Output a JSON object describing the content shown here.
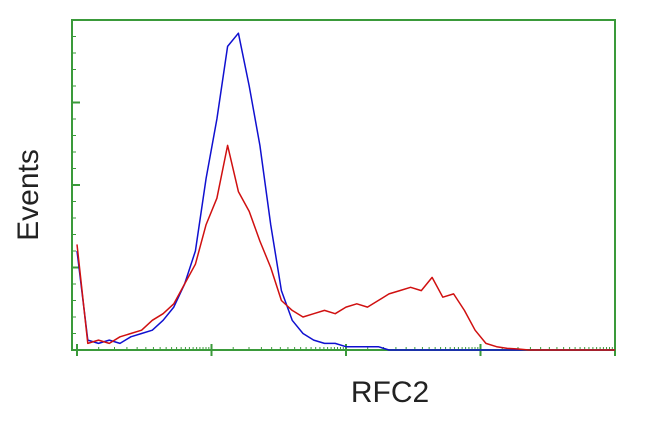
{
  "chart_data": {
    "type": "line",
    "xlabel": "RFC2",
    "ylabel": "Events",
    "x": [
      0,
      0.08,
      0.16,
      0.24,
      0.32,
      0.4,
      0.48,
      0.56,
      0.64,
      0.72,
      0.8,
      0.88,
      0.96,
      1.04,
      1.12,
      1.2,
      1.28,
      1.36,
      1.44,
      1.52,
      1.6,
      1.68,
      1.76,
      1.84,
      1.92,
      2,
      2.08,
      2.16,
      2.24,
      2.32,
      2.4,
      2.48,
      2.56,
      2.64,
      2.72,
      2.8,
      2.88,
      2.96,
      3.04,
      3.12,
      3.2,
      3.28,
      3.36,
      3.44,
      3.52,
      3.6,
      3.68,
      3.76,
      3.84,
      3.92,
      4
    ],
    "series": [
      {
        "color": "#1010d0",
        "values": [
          30,
          3,
          2,
          3,
          2,
          4,
          5,
          6,
          9,
          13,
          20,
          30,
          52,
          70,
          92,
          96,
          80,
          62,
          38,
          18,
          9,
          5,
          3,
          2,
          2,
          1,
          1,
          1,
          1,
          0,
          0,
          0,
          0,
          0,
          0,
          0,
          0,
          0,
          0,
          0,
          0,
          0,
          0,
          0,
          0,
          0,
          0,
          0,
          0,
          0,
          0
        ]
      },
      {
        "color": "#d01010",
        "values": [
          32,
          2,
          3,
          2,
          4,
          5,
          6,
          9,
          11,
          14,
          20,
          26,
          38,
          46,
          62,
          48,
          42,
          33,
          25,
          15,
          12,
          10,
          11,
          12,
          11,
          13,
          14,
          13,
          15,
          17,
          18,
          19,
          18,
          22,
          16,
          17,
          12,
          6,
          2,
          1,
          0.5,
          0.3,
          0,
          0,
          0,
          0,
          0,
          0,
          0,
          0,
          0
        ]
      }
    ],
    "xlim": [
      0,
      4
    ],
    "ylim": [
      0,
      100
    ],
    "xticks": [
      0,
      1,
      2,
      3,
      4
    ],
    "yticks": [
      0,
      25,
      50,
      75,
      100
    ],
    "frame_color": "#3a9a3a"
  }
}
